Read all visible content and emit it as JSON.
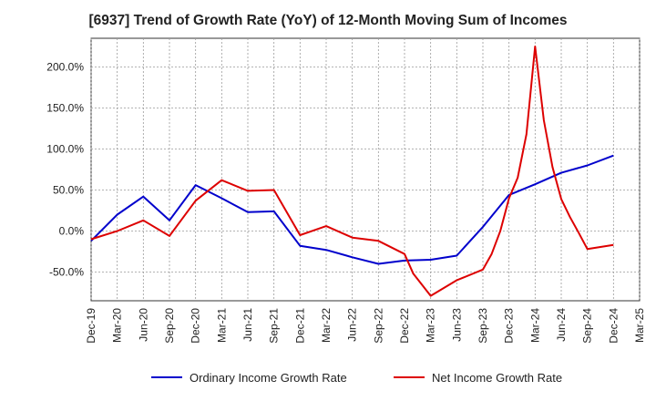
{
  "chart_data": {
    "type": "line",
    "title": "[6937]  Trend of Growth Rate (YoY) of 12-Month Moving Sum of Incomes",
    "xlabel": "",
    "ylabel": "",
    "x_ticks": [
      "Dec-19",
      "Mar-20",
      "Jun-20",
      "Sep-20",
      "Dec-20",
      "Mar-21",
      "Jun-21",
      "Sep-21",
      "Dec-21",
      "Mar-22",
      "Jun-22",
      "Sep-22",
      "Dec-22",
      "Mar-23",
      "Jun-23",
      "Sep-23",
      "Dec-23",
      "Mar-24",
      "Jun-24",
      "Sep-24",
      "Dec-24",
      "Mar-25"
    ],
    "y_ticks": [
      "-50.0%",
      "0.0%",
      "50.0%",
      "100.0%",
      "150.0%",
      "200.0%"
    ],
    "y_tick_values": [
      -50,
      0,
      50,
      100,
      150,
      200
    ],
    "ylim": [
      -85,
      235
    ],
    "grid": true,
    "legend_position": "bottom",
    "series": [
      {
        "name": "Ordinary Income Growth Rate",
        "color": "#0000cc",
        "points": [
          [
            "Dec-19",
            -12
          ],
          [
            "Mar-20",
            20
          ],
          [
            "Jun-20",
            42
          ],
          [
            "Sep-20",
            13
          ],
          [
            "Dec-20",
            56
          ],
          [
            "Mar-21",
            40
          ],
          [
            "Jun-21",
            23
          ],
          [
            "Sep-21",
            24
          ],
          [
            "Dec-21",
            -18
          ],
          [
            "Mar-22",
            -23
          ],
          [
            "Jun-22",
            -32
          ],
          [
            "Sep-22",
            -40
          ],
          [
            "Dec-22",
            -36
          ],
          [
            "Mar-23",
            -35
          ],
          [
            "Jun-23",
            -30
          ],
          [
            "Sep-23",
            5
          ],
          [
            "Dec-23",
            44
          ],
          [
            "Mar-24",
            57
          ],
          [
            "Jun-24",
            71
          ],
          [
            "Sep-24",
            80
          ],
          [
            "Dec-24",
            92
          ]
        ]
      },
      {
        "name": "Net Income Growth Rate",
        "color": "#dd0000",
        "points": [
          [
            "Dec-19",
            -10
          ],
          [
            "Mar-20",
            0
          ],
          [
            "Jun-20",
            13
          ],
          [
            "Sep-20",
            -6
          ],
          [
            "Dec-20",
            37
          ],
          [
            "Mar-21",
            62
          ],
          [
            "Jun-21",
            49
          ],
          [
            "Sep-21",
            50
          ],
          [
            "Dec-21",
            -5
          ],
          [
            "Mar-22",
            6
          ],
          [
            "Jun-22",
            -8
          ],
          [
            "Sep-22",
            -12
          ],
          [
            "Dec-22",
            -28
          ],
          [
            "Jan-23",
            -52
          ],
          [
            "Mar-23",
            -79
          ],
          [
            "Jun-23",
            -60
          ],
          [
            "Sep-23",
            -47
          ],
          [
            "Oct-23",
            -28
          ],
          [
            "Nov-23",
            0
          ],
          [
            "Dec-23",
            40
          ],
          [
            "Jan-24",
            65
          ],
          [
            "Feb-24",
            118
          ],
          [
            "Mar-24",
            225
          ],
          [
            "Apr-24",
            135
          ],
          [
            "May-24",
            78
          ],
          [
            "Jun-24",
            39
          ],
          [
            "Jul-24",
            17
          ],
          [
            "Aug-24",
            -2
          ],
          [
            "Sep-24",
            -22
          ],
          [
            "Dec-24",
            -17
          ]
        ]
      }
    ]
  }
}
